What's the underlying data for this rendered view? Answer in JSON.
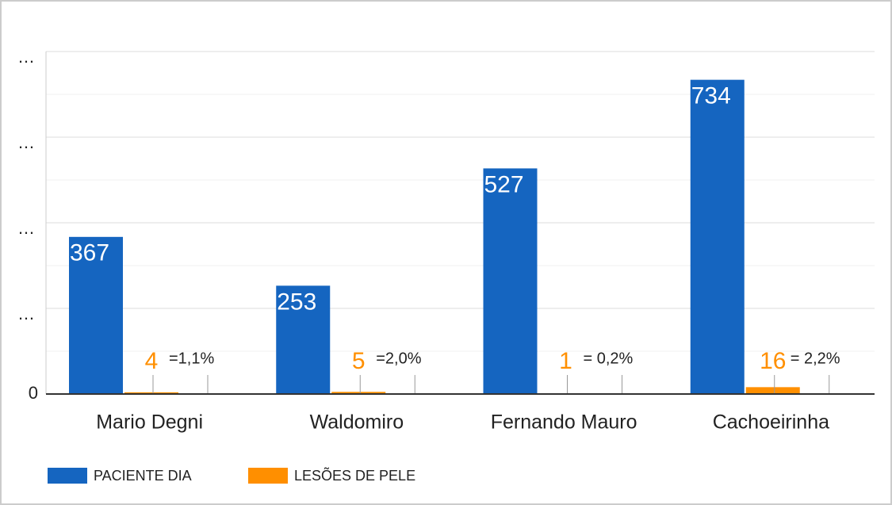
{
  "chart_data": {
    "type": "bar",
    "categories": [
      "Mario Degni",
      "Waldomiro",
      "Fernando Mauro",
      "Cachoeirinha"
    ],
    "series": [
      {
        "name": "PACIENTE DIA",
        "color": "#1565c0",
        "values": [
          367,
          253,
          527,
          734
        ]
      },
      {
        "name": "LESÕES DE PELE",
        "color": "#ff8f00",
        "values": [
          4,
          5,
          1,
          16
        ]
      }
    ],
    "annotations": [
      "=1,1%",
      "=2,0%",
      "= 0,2%",
      "= 2,2%"
    ],
    "ylim": [
      0,
      800
    ],
    "yticks": [
      0,
      {
        "value": 200,
        "label": "…"
      },
      {
        "value": 400,
        "label": "…"
      },
      {
        "value": 600,
        "label": "…"
      },
      {
        "value": 800,
        "label": "…"
      }
    ],
    "grid": true,
    "legend": "bottom"
  }
}
